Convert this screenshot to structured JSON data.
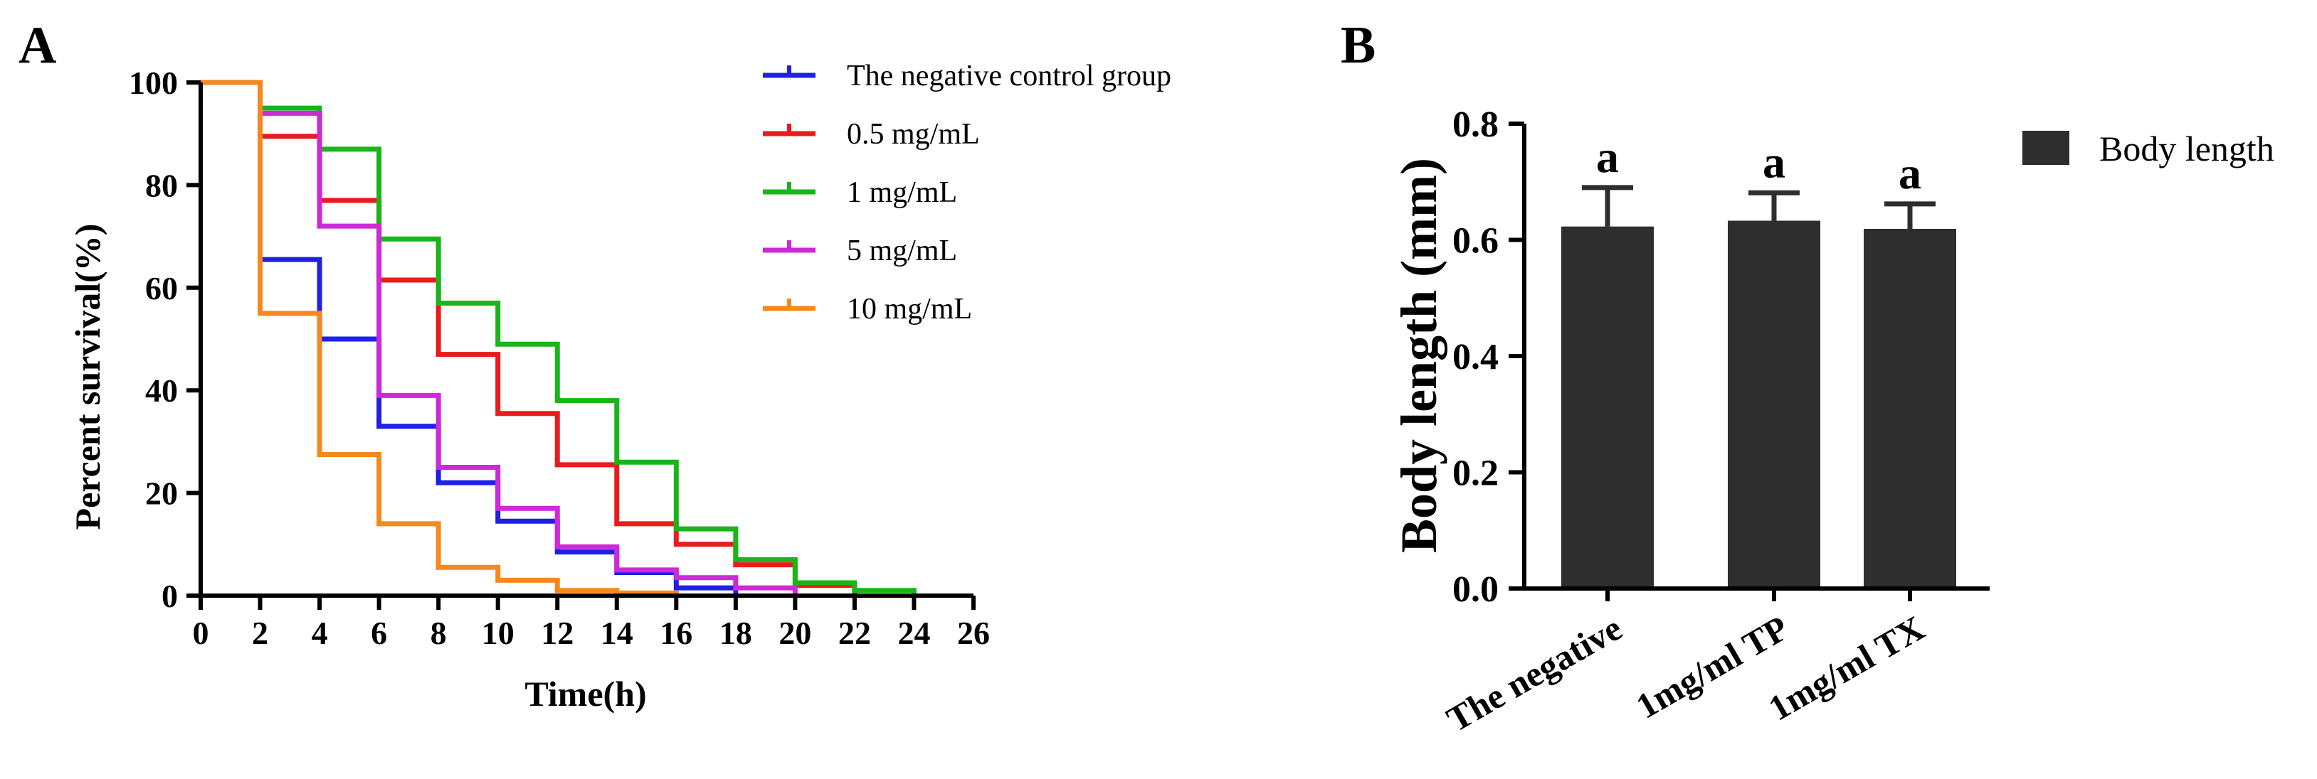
{
  "chart_data": [
    {
      "type": "line",
      "panel_label": "A",
      "subtype": "survival-step",
      "xlabel": "Time(h)",
      "ylabel": "Percent survival(%)",
      "xlim": [
        0,
        26
      ],
      "ylim": [
        0,
        100
      ],
      "xticks": [
        "0",
        "2",
        "4",
        "6",
        "8",
        "10",
        "12",
        "14",
        "16",
        "18",
        "20",
        "22",
        "24",
        "26"
      ],
      "yticks": [
        "0",
        "20",
        "40",
        "60",
        "80",
        "100"
      ],
      "legend_position": "top-right",
      "series": [
        {
          "name": "The negative control group",
          "color": "#1f1fe6",
          "x": [
            0,
            2,
            4,
            6,
            8,
            10,
            12,
            14,
            16,
            18
          ],
          "y": [
            100,
            65.5,
            50,
            33,
            22,
            14.5,
            8.5,
            4.5,
            1.5,
            0
          ]
        },
        {
          "name": "0.5 mg/mL",
          "color": "#e81c1c",
          "x": [
            0,
            2,
            4,
            6,
            8,
            10,
            12,
            14,
            16,
            18,
            20,
            22
          ],
          "y": [
            100,
            89.5,
            77,
            61.5,
            47,
            35.5,
            25.5,
            14,
            10,
            6,
            2,
            0
          ]
        },
        {
          "name": "1 mg/mL",
          "color": "#19b519",
          "x": [
            0,
            2,
            4,
            6,
            8,
            10,
            12,
            14,
            16,
            18,
            20,
            22,
            24
          ],
          "y": [
            100,
            95,
            87,
            69.5,
            57,
            49,
            38,
            26,
            13,
            7,
            2.5,
            1,
            0
          ]
        },
        {
          "name": "5 mg/mL",
          "color": "#cc2ad6",
          "x": [
            0,
            2,
            4,
            6,
            8,
            10,
            12,
            14,
            16,
            18,
            20
          ],
          "y": [
            100,
            94,
            72,
            39,
            25,
            17,
            9.5,
            5,
            3.5,
            1.5,
            0
          ]
        },
        {
          "name": "10 mg/mL",
          "color": "#f4891e",
          "x": [
            0,
            2,
            4,
            6,
            8,
            10,
            12,
            14,
            16
          ],
          "y": [
            100,
            55,
            27.5,
            14,
            5.5,
            3,
            1,
            0.5,
            0
          ]
        }
      ]
    },
    {
      "type": "bar",
      "panel_label": "B",
      "ylabel": "Body length (mm)",
      "ylim": [
        0,
        0.8
      ],
      "yticks": [
        "0.0",
        "0.2",
        "0.4",
        "0.6",
        "0.8"
      ],
      "categories": [
        "The negative",
        "1mg/ml TP",
        "1mg/ml TX"
      ],
      "values": [
        0.623,
        0.633,
        0.619
      ],
      "errors": [
        0.067,
        0.048,
        0.043
      ],
      "annotations": [
        "a",
        "a",
        "a"
      ],
      "bar_color": "#2e2e2e",
      "legend": [
        "Body length"
      ],
      "legend_position": "top-right"
    }
  ]
}
